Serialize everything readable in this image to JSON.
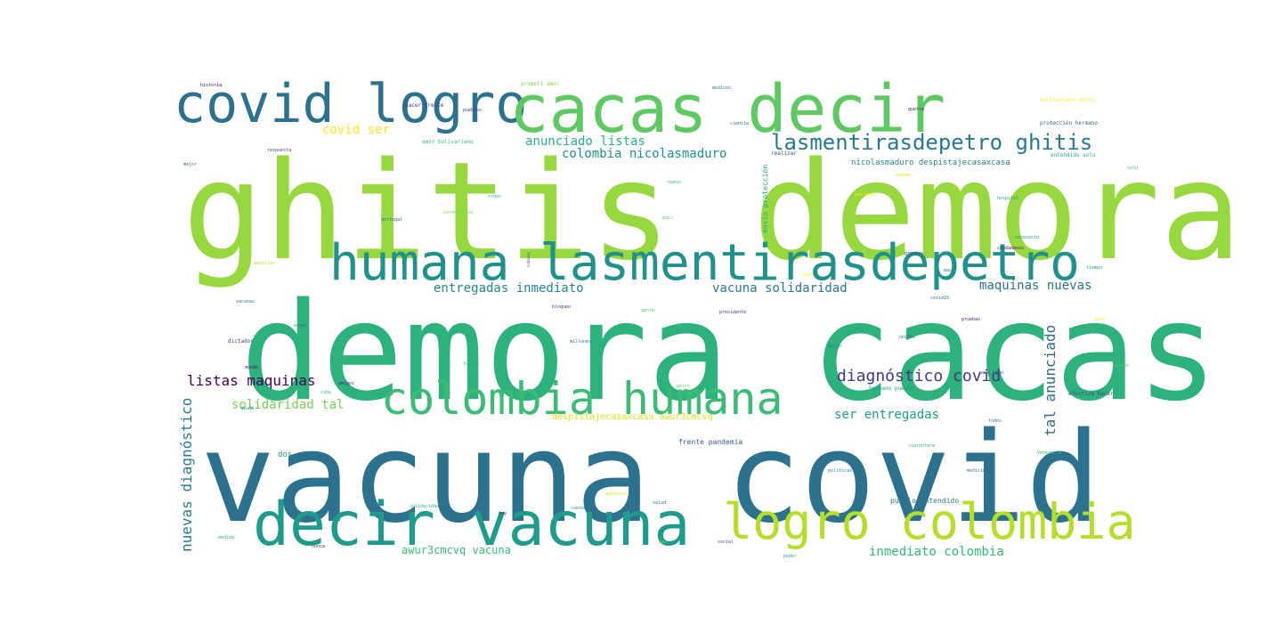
{
  "words": [
    {
      "t": "ghitis demora",
      "c": "#97d83f"
    },
    {
      "t": "demora cacas",
      "c": "#2db27d"
    },
    {
      "t": "vacuna covid",
      "c": "#2c728e"
    },
    {
      "t": "covid logro",
      "c": "#2c728e"
    },
    {
      "t": "cacas decir",
      "c": "#5ec962"
    },
    {
      "t": "humana lasmentirasdepetro",
      "c": "#21918c"
    },
    {
      "t": "colombia humana",
      "c": "#3bbb75"
    },
    {
      "t": "decir vacuna",
      "c": "#1e9b8a"
    },
    {
      "t": "logro colombia",
      "c": "#b5de2b"
    },
    {
      "t": "lasmentirasdepetro ghitis",
      "c": "#2a788e"
    },
    {
      "t": "diagnóstico covid",
      "c": "#443983"
    },
    {
      "t": "listas maquinas",
      "c": "#440154"
    },
    {
      "t": "entregadas inmediato",
      "c": "#25858e"
    },
    {
      "t": "vacuna solidaridad",
      "c": "#2a788e"
    },
    {
      "t": "maquinas nuevas",
      "c": "#2c728e"
    },
    {
      "t": "solidaridad tal",
      "c": "#7ad151"
    },
    {
      "t": "ser entregadas",
      "c": "#1f9e89"
    },
    {
      "t": "tal anunciado",
      "c": "#31688e"
    },
    {
      "t": "nuevas diagnóstico",
      "c": "#2a788e"
    },
    {
      "t": "anunciado listas",
      "c": "#2db27d"
    },
    {
      "t": "colombia nicolasmaduro",
      "c": "#21918c"
    },
    {
      "t": "covid ser",
      "c": "#fde725"
    },
    {
      "t": "inmediato colombia",
      "c": "#35b779"
    },
    {
      "t": "awur3cmcvq vacuna",
      "c": "#3bbb75"
    },
    {
      "t": "despistajecasaxcasa awur3cmcvq",
      "c": "#d8e219"
    },
    {
      "t": "nicolasmaduro despistajecasaxcasa",
      "c": "#25858e"
    },
    {
      "t": "frente pandemia",
      "c": "#39568c"
    },
    {
      "t": "pueblo entendido",
      "c": "#2c728e"
    },
    {
      "t": "envío protección",
      "c": "#22a884"
    },
    {
      "t": "protección hermano",
      "c": "#31688e"
    },
    {
      "t": "bolivariano envío",
      "c": "#fde725"
    },
    {
      "t": "amor bolivariano",
      "c": "#35b779"
    },
    {
      "t": "prometí amor",
      "c": "#7ad151"
    },
    {
      "t": "hacer frente",
      "c": "#46327e"
    },
    {
      "t": "efectiva hacer",
      "c": "#3e4a89"
    },
    {
      "t": "hermano pueblo",
      "c": "#1f9e89"
    },
    {
      "t": "entendido solo",
      "c": "#20a486"
    },
    {
      "t": "dictador",
      "c": "#3e4a89"
    },
    {
      "t": "dos",
      "c": "#1f9e89"
    },
    {
      "t": "realizar",
      "c": "#3e4a89"
    },
    {
      "t": "mundo",
      "c": "#481668"
    },
    {
      "t": "gracias",
      "c": "#3e4a89"
    },
    {
      "t": "salud",
      "c": "#31688e"
    },
    {
      "t": "pais",
      "c": "#5ec962"
    },
    {
      "t": "mejor",
      "c": "#31688e"
    },
    {
      "t": "solo",
      "c": "#35b779"
    },
    {
      "t": "presidente",
      "c": "#46327e"
    },
    {
      "t": "necesario",
      "c": "#1f9e89"
    },
    {
      "t": "ayuda",
      "c": "#26828e"
    },
    {
      "t": "pueblos",
      "c": "#46327e"
    },
    {
      "t": "amigos",
      "c": "#46327e"
    },
    {
      "t": "nacion",
      "c": "#5ec962"
    },
    {
      "t": "Venezuela",
      "c": "#35b779"
    },
    {
      "t": "gobierno",
      "c": "#d8e219"
    },
    {
      "t": "cubanos",
      "c": "#3e4a89"
    },
    {
      "t": "medicos",
      "c": "#2a788e"
    },
    {
      "t": "portugal",
      "c": "#31688e"
    },
    {
      "t": "coronavirus",
      "c": "#7ad151"
    },
    {
      "t": "historia",
      "c": "#440154"
    },
    {
      "t": "ciudadanos",
      "c": "#481668"
    },
    {
      "t": "politicas",
      "c": "#26828e"
    },
    {
      "t": "tiempo",
      "c": "#20a486"
    },
    {
      "t": "mentiras",
      "c": "#b5de2b"
    },
    {
      "t": "uribe",
      "c": "#2c728e"
    },
    {
      "t": "petro",
      "c": "#5ec962"
    },
    {
      "t": "cuba",
      "c": "#3bbb75"
    },
    {
      "t": "mas",
      "c": "#2c728e"
    },
    {
      "t": "covid19",
      "c": "#31688e"
    },
    {
      "t": "gente",
      "c": "#5ec962"
    },
    {
      "t": "vida",
      "c": "#fde725"
    },
    {
      "t": "respuesta",
      "c": "#3e4a89"
    },
    {
      "t": "casos",
      "c": "#26828e"
    },
    {
      "t": "pruebas",
      "c": "#481668"
    },
    {
      "t": "cuarentena",
      "c": "#3bbb75"
    },
    {
      "t": "millones",
      "c": "#2c728e"
    },
    {
      "t": "bien",
      "c": "#fde725"
    },
    {
      "t": "hoy",
      "c": "#472d7b"
    },
    {
      "t": "social",
      "c": "#3e4a89"
    },
    {
      "t": "poder",
      "c": "#22a884"
    },
    {
      "t": "todos",
      "c": "#2c728e"
    },
    {
      "t": "nunca",
      "c": "#46327e"
    },
    {
      "t": "medida",
      "c": "#35b779"
    },
    {
      "t": "apoyo",
      "c": "#26828e"
    },
    {
      "t": "futuro",
      "c": "#3bbb75"
    },
    {
      "t": "vez",
      "c": "#31688e"
    },
    {
      "t": "senado",
      "c": "#d8e219"
    },
    {
      "t": "pais_bien",
      "c": "#3e4a89"
    },
    {
      "t": "guerra",
      "c": "#481668"
    },
    {
      "t": "paz",
      "c": "#7ad151"
    },
    {
      "t": "solidaridad",
      "c": "#2db27d"
    },
    {
      "t": "bloqueo",
      "c": "#46327e"
    },
    {
      "t": "medicina",
      "c": "#2a788e"
    },
    {
      "t": "hospital",
      "c": "#1f9e89"
    },
    {
      "t": "vacunas",
      "c": "#26828e"
    },
    {
      "t": "entregar",
      "c": "#fde725"
    },
    {
      "t": "nuevo",
      "c": "#35b779"
    },
    {
      "t": "ciencia",
      "c": "#2c728e"
    },
    {
      "t": "orden",
      "c": "#3bbb75"
    },
    {
      "t": "unidos",
      "c": "#31688e"
    }
  ]
}
